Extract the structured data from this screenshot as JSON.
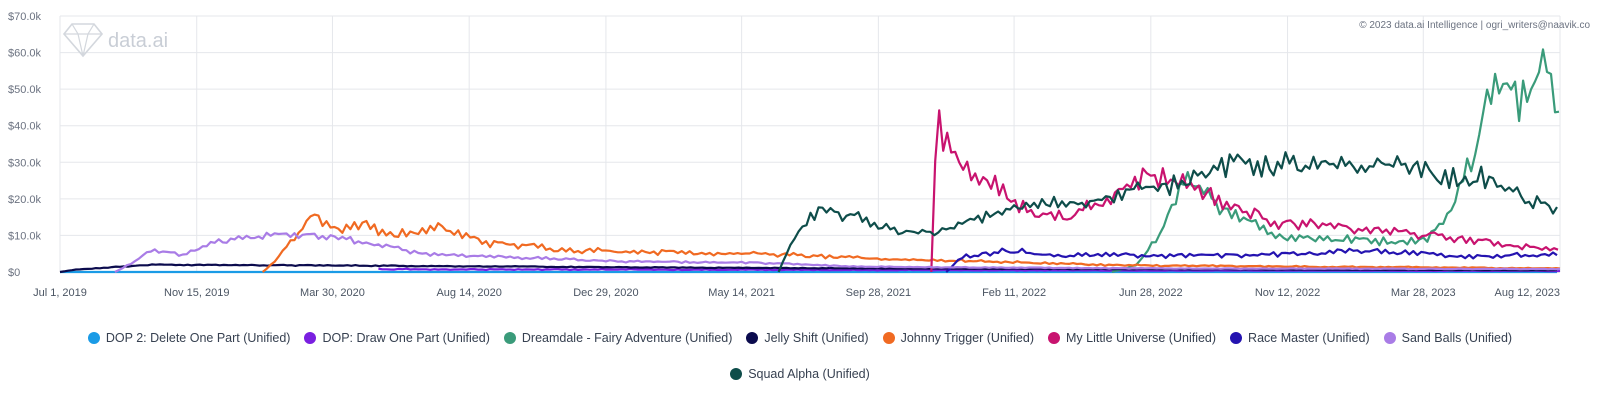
{
  "watermark": "data.ai",
  "copyright": "© 2023 data.ai Intelligence | ogri_writers@naavik.co",
  "chart_data": {
    "type": "line",
    "ylabel": "",
    "ylim": [
      0,
      70000
    ],
    "y_ticks": [
      "$0",
      "$10.0k",
      "$20.0k",
      "$30.0k",
      "$40.0k",
      "$50.0k",
      "$60.0k",
      "$70.0k"
    ],
    "y_tick_values": [
      0,
      10000,
      20000,
      30000,
      40000,
      50000,
      60000,
      70000
    ],
    "x_range": [
      "2019-07-01",
      "2023-08-12"
    ],
    "x_ticks": [
      "Jul 1, 2019",
      "Nov 15, 2019",
      "Mar 30, 2020",
      "Aug 14, 2020",
      "Dec 29, 2020",
      "May 14, 2021",
      "Sep 28, 2021",
      "Feb 11, 2022",
      "Jun 28, 2022",
      "Nov 12, 2022",
      "Mar 28, 2023",
      "Aug 12, 2023"
    ],
    "x_tick_dates": [
      "2019-07-01",
      "2019-11-15",
      "2020-03-30",
      "2020-08-14",
      "2020-12-29",
      "2021-05-14",
      "2021-09-28",
      "2022-02-11",
      "2022-06-28",
      "2022-11-12",
      "2023-03-28",
      "2023-08-12"
    ],
    "grid": true,
    "legend_position": "bottom",
    "series": [
      {
        "name": "DOP 2: Delete One Part (Unified)",
        "color": "#1a9be6",
        "noise": 0.08,
        "points": [
          [
            "2019-07-01",
            0
          ],
          [
            "2023-08-12",
            0
          ]
        ]
      },
      {
        "name": "DOP: Draw One Part (Unified)",
        "color": "#7a1fe0",
        "noise": 0.2,
        "points": [
          [
            "2020-05-15",
            800
          ],
          [
            "2020-09-01",
            700
          ],
          [
            "2021-06-01",
            600
          ],
          [
            "2022-06-01",
            400
          ],
          [
            "2023-08-12",
            300
          ]
        ]
      },
      {
        "name": "Dreamdale - Fairy Adventure (Unified)",
        "color": "#3a9b7a",
        "noise": 0.14,
        "points": [
          [
            "2022-05-20",
            0
          ],
          [
            "2022-06-15",
            2000
          ],
          [
            "2022-07-10",
            12000
          ],
          [
            "2022-08-01",
            24000
          ],
          [
            "2022-09-01",
            19000
          ],
          [
            "2022-10-01",
            15000
          ],
          [
            "2022-11-01",
            10000
          ],
          [
            "2023-01-01",
            9000
          ],
          [
            "2023-03-01",
            8500
          ],
          [
            "2023-04-01",
            9000
          ],
          [
            "2023-04-20",
            15000
          ],
          [
            "2023-05-15",
            30000
          ],
          [
            "2023-06-01",
            50000
          ],
          [
            "2023-07-01",
            47000
          ],
          [
            "2023-07-25",
            62000
          ],
          [
            "2023-08-12",
            48000
          ]
        ]
      },
      {
        "name": "Jelly Shift (Unified)",
        "color": "#0b0b4d",
        "noise": 0.08,
        "points": [
          [
            "2019-07-01",
            0
          ],
          [
            "2019-07-15",
            600
          ],
          [
            "2019-09-01",
            1500
          ],
          [
            "2019-10-01",
            2000
          ],
          [
            "2020-06-01",
            1700
          ],
          [
            "2021-01-01",
            1300
          ],
          [
            "2021-09-01",
            1000
          ],
          [
            "2022-06-01",
            800
          ],
          [
            "2023-08-12",
            500
          ]
        ]
      },
      {
        "name": "Johnny Trigger (Unified)",
        "color": "#f06a22",
        "noise": 0.13,
        "points": [
          [
            "2020-01-20",
            0
          ],
          [
            "2020-02-05",
            4000
          ],
          [
            "2020-03-10",
            16000
          ],
          [
            "2020-04-01",
            12000
          ],
          [
            "2020-05-01",
            13000
          ],
          [
            "2020-06-01",
            10000
          ],
          [
            "2020-07-15",
            12000
          ],
          [
            "2020-09-01",
            8000
          ],
          [
            "2020-12-01",
            6000
          ],
          [
            "2021-03-01",
            5500
          ],
          [
            "2021-06-01",
            5000
          ],
          [
            "2021-09-01",
            3800
          ],
          [
            "2022-01-01",
            3000
          ],
          [
            "2022-06-01",
            1800
          ],
          [
            "2023-08-12",
            1000
          ]
        ]
      },
      {
        "name": "My Little Universe (Unified)",
        "color": "#c8136f",
        "noise": 0.13,
        "points": [
          [
            "2021-11-20",
            0
          ],
          [
            "2021-11-25",
            40000
          ],
          [
            "2021-12-20",
            30000
          ],
          [
            "2022-01-15",
            25000
          ],
          [
            "2022-02-15",
            18000
          ],
          [
            "2022-04-01",
            15000
          ],
          [
            "2022-05-15",
            19000
          ],
          [
            "2022-06-10",
            27000
          ],
          [
            "2022-08-01",
            25000
          ],
          [
            "2022-09-15",
            18000
          ],
          [
            "2022-11-01",
            14000
          ],
          [
            "2023-01-01",
            12000
          ],
          [
            "2023-03-01",
            11000
          ],
          [
            "2023-04-01",
            10000
          ],
          [
            "2023-08-12",
            6000
          ]
        ]
      },
      {
        "name": "Race Master (Unified)",
        "color": "#2413b0",
        "noise": 0.15,
        "points": [
          [
            "2021-12-05",
            0
          ],
          [
            "2021-12-20",
            4000
          ],
          [
            "2022-02-01",
            6000
          ],
          [
            "2022-04-01",
            4500
          ],
          [
            "2022-08-01",
            4500
          ],
          [
            "2022-12-01",
            5000
          ],
          [
            "2023-02-01",
            6000
          ],
          [
            "2023-05-01",
            4500
          ],
          [
            "2023-08-12",
            4500
          ]
        ]
      },
      {
        "name": "Sand Balls (Unified)",
        "color": "#a97ce6",
        "noise": 0.1,
        "points": [
          [
            "2019-08-25",
            0
          ],
          [
            "2019-09-05",
            1500
          ],
          [
            "2019-10-01",
            6000
          ],
          [
            "2019-11-01",
            4500
          ],
          [
            "2019-12-01",
            8000
          ],
          [
            "2020-01-15",
            10000
          ],
          [
            "2020-03-15",
            10000
          ],
          [
            "2020-05-01",
            8000
          ],
          [
            "2020-07-01",
            5000
          ],
          [
            "2020-10-01",
            4000
          ],
          [
            "2021-01-01",
            3000
          ],
          [
            "2021-06-01",
            2500
          ],
          [
            "2021-09-01",
            1500
          ],
          [
            "2022-06-01",
            1000
          ],
          [
            "2023-08-12",
            800
          ]
        ]
      },
      {
        "name": "Squad Alpha (Unified)",
        "color": "#0e4d4a",
        "noise": 0.12,
        "points": [
          [
            "2021-06-20",
            0
          ],
          [
            "2021-07-10",
            12000
          ],
          [
            "2021-08-01",
            17000
          ],
          [
            "2021-09-01",
            15000
          ],
          [
            "2021-10-15",
            11000
          ],
          [
            "2021-12-01",
            11000
          ],
          [
            "2022-02-01",
            17000
          ],
          [
            "2022-04-01",
            19000
          ],
          [
            "2022-06-01",
            21000
          ],
          [
            "2022-08-01",
            26000
          ],
          [
            "2022-10-01",
            30000
          ],
          [
            "2023-01-01",
            28000
          ],
          [
            "2023-03-01",
            30000
          ],
          [
            "2023-04-15",
            26000
          ],
          [
            "2023-06-01",
            25000
          ],
          [
            "2023-08-12",
            16000
          ]
        ]
      }
    ]
  }
}
